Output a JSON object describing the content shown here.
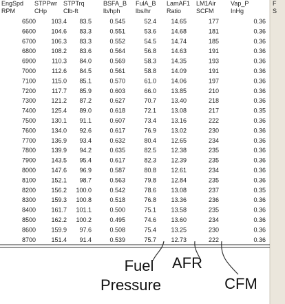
{
  "table": {
    "header1": [
      "EngSpd",
      "STPPwr",
      "STPTrq",
      "BSFA_B",
      "FulA_B",
      "LamAF1",
      "LM1Air",
      "Vap_P",
      "F"
    ],
    "header2": [
      "RPM",
      "CHp",
      "Clb-ft",
      "lb/hph",
      "lbs/hr",
      "Ratio",
      "SCFM",
      "InHg",
      "S"
    ],
    "rows": [
      [
        "6500",
        "103.4",
        "83.5",
        "0.545",
        "52.4",
        "14.65",
        "177",
        "0.36"
      ],
      [
        "6600",
        "104.6",
        "83.3",
        "0.551",
        "53.6",
        "14.68",
        "181",
        "0.36"
      ],
      [
        "6700",
        "106.3",
        "83.3",
        "0.552",
        "54.5",
        "14.74",
        "185",
        "0.36"
      ],
      [
        "6800",
        "108.2",
        "83.6",
        "0.564",
        "56.8",
        "14.63",
        "191",
        "0.36"
      ],
      [
        "6900",
        "110.3",
        "84.0",
        "0.569",
        "58.3",
        "14.35",
        "193",
        "0.36"
      ],
      [
        "7000",
        "112.6",
        "84.5",
        "0.561",
        "58.8",
        "14.09",
        "191",
        "0.36"
      ],
      [
        "7100",
        "115.0",
        "85.1",
        "0.570",
        "61.0",
        "14.06",
        "197",
        "0.36"
      ],
      [
        "7200",
        "117.7",
        "85.9",
        "0.603",
        "66.0",
        "13.85",
        "210",
        "0.36"
      ],
      [
        "7300",
        "121.2",
        "87.2",
        "0.627",
        "70.7",
        "13.40",
        "218",
        "0.36"
      ],
      [
        "7400",
        "125.4",
        "89.0",
        "0.618",
        "72.1",
        "13.08",
        "217",
        "0.35"
      ],
      [
        "7500",
        "130.1",
        "91.1",
        "0.607",
        "73.4",
        "13.16",
        "222",
        "0.36"
      ],
      [
        "7600",
        "134.0",
        "92.6",
        "0.617",
        "76.9",
        "13.02",
        "230",
        "0.36"
      ],
      [
        "7700",
        "136.9",
        "93.4",
        "0.632",
        "80.4",
        "12.65",
        "234",
        "0.36"
      ],
      [
        "7800",
        "139.9",
        "94.2",
        "0.635",
        "82.5",
        "12.38",
        "235",
        "0.36"
      ],
      [
        "7900",
        "143.5",
        "95.4",
        "0.617",
        "82.3",
        "12.39",
        "235",
        "0.36"
      ],
      [
        "8000",
        "147.6",
        "96.9",
        "0.587",
        "80.8",
        "12.61",
        "234",
        "0.36"
      ],
      [
        "8100",
        "152.1",
        "98.7",
        "0.563",
        "79.8",
        "12.84",
        "235",
        "0.36"
      ],
      [
        "8200",
        "156.2",
        "100.0",
        "0.542",
        "78.6",
        "13.08",
        "237",
        "0.35"
      ],
      [
        "8300",
        "159.3",
        "100.8",
        "0.518",
        "76.8",
        "13.36",
        "236",
        "0.36"
      ],
      [
        "8400",
        "161.7",
        "101.1",
        "0.500",
        "75.1",
        "13.58",
        "235",
        "0.36"
      ],
      [
        "8500",
        "162.2",
        "100.2",
        "0.495",
        "74.6",
        "13.60",
        "234",
        "0.36"
      ],
      [
        "8600",
        "159.9",
        "97.6",
        "0.508",
        "75.4",
        "13.25",
        "230",
        "0.36"
      ],
      [
        "8700",
        "151.4",
        "91.4",
        "0.539",
        "75.7",
        "12.73",
        "222",
        "0.36"
      ]
    ]
  },
  "annotations": {
    "fuel_pressure": [
      "Fuel",
      "Pressure"
    ],
    "afr": "AFR",
    "cfm": "CFM"
  }
}
